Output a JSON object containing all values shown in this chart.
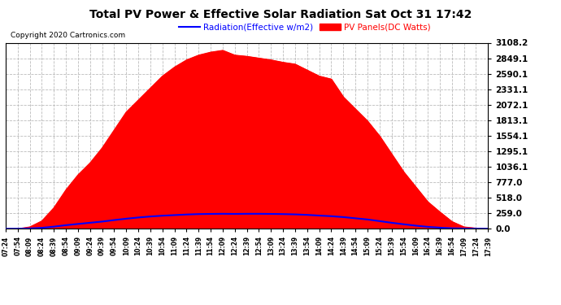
{
  "title": "Total PV Power & Effective Solar Radiation Sat Oct 31 17:42",
  "copyright": "Copyright 2020 Cartronics.com",
  "legend_radiation": "Radiation(Effective w/m2)",
  "legend_pv": "PV Panels(DC Watts)",
  "radiation_color": "blue",
  "pv_color": "red",
  "background_color": "#ffffff",
  "grid_color": "#bbbbbb",
  "ymin": 0.0,
  "ymax": 3108.2,
  "yticks": [
    0.0,
    259.0,
    518.0,
    777.0,
    1036.1,
    1295.1,
    1554.1,
    1813.1,
    2072.1,
    2331.1,
    2590.1,
    2849.1,
    3108.2
  ],
  "xtick_labels": [
    "07:24",
    "07:54",
    "08:09",
    "08:24",
    "08:39",
    "08:54",
    "09:09",
    "09:24",
    "09:39",
    "09:54",
    "10:09",
    "10:24",
    "10:39",
    "10:54",
    "11:09",
    "11:24",
    "11:39",
    "11:54",
    "12:09",
    "12:24",
    "12:39",
    "12:54",
    "13:09",
    "13:24",
    "13:39",
    "13:54",
    "14:09",
    "14:24",
    "14:39",
    "14:54",
    "15:09",
    "15:24",
    "15:39",
    "15:54",
    "16:09",
    "16:24",
    "16:39",
    "16:54",
    "17:09",
    "17:24",
    "17:39"
  ],
  "pv_values": [
    0,
    0,
    30,
    130,
    350,
    650,
    900,
    1100,
    1350,
    1650,
    1950,
    2150,
    2350,
    2550,
    2700,
    2820,
    2900,
    2950,
    2980,
    2900,
    2880,
    2850,
    2820,
    2780,
    2750,
    2650,
    2550,
    2500,
    2200,
    2000,
    1800,
    1550,
    1250,
    950,
    700,
    450,
    280,
    120,
    30,
    10,
    0
  ],
  "radiation_values": [
    0,
    0,
    5,
    15,
    35,
    60,
    80,
    100,
    120,
    145,
    168,
    188,
    205,
    218,
    228,
    238,
    245,
    248,
    250,
    248,
    250,
    250,
    248,
    245,
    240,
    232,
    220,
    210,
    195,
    175,
    155,
    128,
    100,
    75,
    52,
    32,
    18,
    8,
    3,
    1,
    0
  ]
}
